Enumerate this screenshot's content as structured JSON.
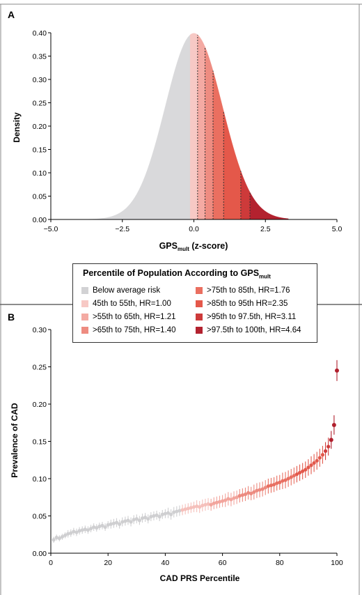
{
  "chart_data": [
    {
      "panel_label": "A",
      "type": "area",
      "xlabel_main": "GPS",
      "xlabel_sub": "mult",
      "xlabel_suffix": " (z-score)",
      "ylabel": "Density",
      "xlim": [
        -5.0,
        5.0
      ],
      "ylim": [
        0.0,
        0.4
      ],
      "x_ticks": [
        "-5.0",
        "-2.5",
        "0.0",
        "2.5",
        "5.0"
      ],
      "y_ticks": [
        "0.00",
        "0.05",
        "0.10",
        "0.15",
        "0.20",
        "0.25",
        "0.30",
        "0.35",
        "0.40"
      ],
      "distribution": "standard normal density",
      "regions": [
        {
          "from": -4.6,
          "to": -0.13,
          "color": "#d9d9db"
        },
        {
          "from": -0.13,
          "to": 0.13,
          "color": "#f7c9c5"
        },
        {
          "from": 0.13,
          "to": 0.39,
          "color": "#f4aaa3"
        },
        {
          "from": 0.39,
          "to": 0.67,
          "color": "#ee8c81"
        },
        {
          "from": 0.67,
          "to": 1.04,
          "color": "#ea6f60"
        },
        {
          "from": 1.04,
          "to": 1.64,
          "color": "#e4584a"
        },
        {
          "from": 1.64,
          "to": 1.96,
          "color": "#cd3a3a"
        },
        {
          "from": 1.96,
          "to": 3.3,
          "color": "#b3222f"
        }
      ],
      "dotted_lines": [
        0.13,
        0.39,
        0.67,
        1.04,
        1.64,
        1.96
      ]
    },
    {
      "panel_label": "B",
      "type": "scatter",
      "xlabel": "CAD PRS Percentile",
      "ylabel": "Prevalence of CAD",
      "xlim": [
        0,
        100
      ],
      "ylim": [
        0.0,
        0.3
      ],
      "x_ticks": [
        "0",
        "20",
        "40",
        "60",
        "80",
        "100"
      ],
      "y_ticks": [
        "0.00",
        "0.05",
        "0.10",
        "0.15",
        "0.20",
        "0.25",
        "0.30"
      ],
      "percentile": [
        1,
        2,
        3,
        4,
        5,
        6,
        7,
        8,
        9,
        10,
        11,
        12,
        13,
        14,
        15,
        16,
        17,
        18,
        19,
        20,
        21,
        22,
        23,
        24,
        25,
        26,
        27,
        28,
        29,
        30,
        31,
        32,
        33,
        34,
        35,
        36,
        37,
        38,
        39,
        40,
        41,
        42,
        43,
        44,
        45,
        46,
        47,
        48,
        49,
        50,
        51,
        52,
        53,
        54,
        55,
        56,
        57,
        58,
        59,
        60,
        61,
        62,
        63,
        64,
        65,
        66,
        67,
        68,
        69,
        70,
        71,
        72,
        73,
        74,
        75,
        76,
        77,
        78,
        79,
        80,
        81,
        82,
        83,
        84,
        85,
        86,
        87,
        88,
        89,
        90,
        91,
        92,
        93,
        94,
        95,
        96,
        97,
        98,
        99,
        100
      ],
      "prevalence": [
        0.018,
        0.021,
        0.02,
        0.022,
        0.024,
        0.026,
        0.027,
        0.029,
        0.028,
        0.03,
        0.031,
        0.032,
        0.031,
        0.033,
        0.035,
        0.034,
        0.036,
        0.037,
        0.035,
        0.038,
        0.039,
        0.04,
        0.041,
        0.039,
        0.042,
        0.043,
        0.044,
        0.042,
        0.045,
        0.046,
        0.044,
        0.047,
        0.048,
        0.046,
        0.049,
        0.05,
        0.051,
        0.049,
        0.052,
        0.053,
        0.054,
        0.052,
        0.055,
        0.056,
        0.057,
        0.058,
        0.059,
        0.06,
        0.061,
        0.062,
        0.063,
        0.062,
        0.064,
        0.065,
        0.066,
        0.065,
        0.067,
        0.068,
        0.069,
        0.07,
        0.071,
        0.073,
        0.072,
        0.074,
        0.075,
        0.077,
        0.078,
        0.079,
        0.081,
        0.08,
        0.082,
        0.084,
        0.085,
        0.086,
        0.088,
        0.09,
        0.091,
        0.092,
        0.094,
        0.095,
        0.097,
        0.098,
        0.1,
        0.102,
        0.104,
        0.106,
        0.108,
        0.11,
        0.112,
        0.115,
        0.118,
        0.121,
        0.124,
        0.128,
        0.132,
        0.137,
        0.143,
        0.152,
        0.172,
        0.245
      ],
      "ci_halfwidth": [
        0.004,
        0.004,
        0.004,
        0.004,
        0.004,
        0.005,
        0.005,
        0.005,
        0.005,
        0.005,
        0.005,
        0.005,
        0.005,
        0.005,
        0.005,
        0.005,
        0.005,
        0.005,
        0.005,
        0.005,
        0.006,
        0.006,
        0.006,
        0.006,
        0.006,
        0.006,
        0.006,
        0.006,
        0.006,
        0.006,
        0.006,
        0.006,
        0.006,
        0.006,
        0.006,
        0.006,
        0.006,
        0.006,
        0.006,
        0.006,
        0.007,
        0.007,
        0.007,
        0.007,
        0.007,
        0.007,
        0.007,
        0.007,
        0.007,
        0.007,
        0.008,
        0.008,
        0.008,
        0.008,
        0.008,
        0.008,
        0.008,
        0.008,
        0.008,
        0.008,
        0.009,
        0.009,
        0.009,
        0.009,
        0.009,
        0.009,
        0.009,
        0.009,
        0.009,
        0.009,
        0.01,
        0.01,
        0.01,
        0.01,
        0.01,
        0.01,
        0.01,
        0.01,
        0.01,
        0.01,
        0.011,
        0.011,
        0.011,
        0.011,
        0.011,
        0.011,
        0.011,
        0.011,
        0.011,
        0.011,
        0.012,
        0.012,
        0.012,
        0.012,
        0.012,
        0.012,
        0.012,
        0.012,
        0.013,
        0.014
      ],
      "color_bins": [
        {
          "max": 45,
          "color": "#cfcfd1"
        },
        {
          "max": 55,
          "color": "#f5c0bb"
        },
        {
          "max": 65,
          "color": "#f2a49c"
        },
        {
          "max": 75,
          "color": "#ec8a7f"
        },
        {
          "max": 85,
          "color": "#e86f61"
        },
        {
          "max": 95,
          "color": "#e2584b"
        },
        {
          "max": 97.5,
          "color": "#cf3b3b"
        },
        {
          "max": 100,
          "color": "#b01f2d"
        }
      ]
    }
  ],
  "legend": {
    "title_main": "Percentile of Population According to GPS",
    "title_sub": "mult",
    "items": [
      {
        "label": "Below average risk",
        "color": "#d2d2d4"
      },
      {
        "label": "45th to 55th, HR=1.00",
        "color": "#f7c9c5"
      },
      {
        "label": ">55th to 65th, HR=1.21",
        "color": "#f4aaa3"
      },
      {
        "label": ">65th to 75th, HR=1.40",
        "color": "#ee8c81"
      },
      {
        "label": ">75th to 85th, HR=1.76",
        "color": "#ea6f60"
      },
      {
        "label": ">85th to 95th HR=2.35",
        "color": "#e4584a"
      },
      {
        "label": ">95th to 97.5th, HR=3.11",
        "color": "#cd3a3a"
      },
      {
        "label": ">97.5th to 100th, HR=4.64",
        "color": "#b3222f"
      }
    ]
  }
}
